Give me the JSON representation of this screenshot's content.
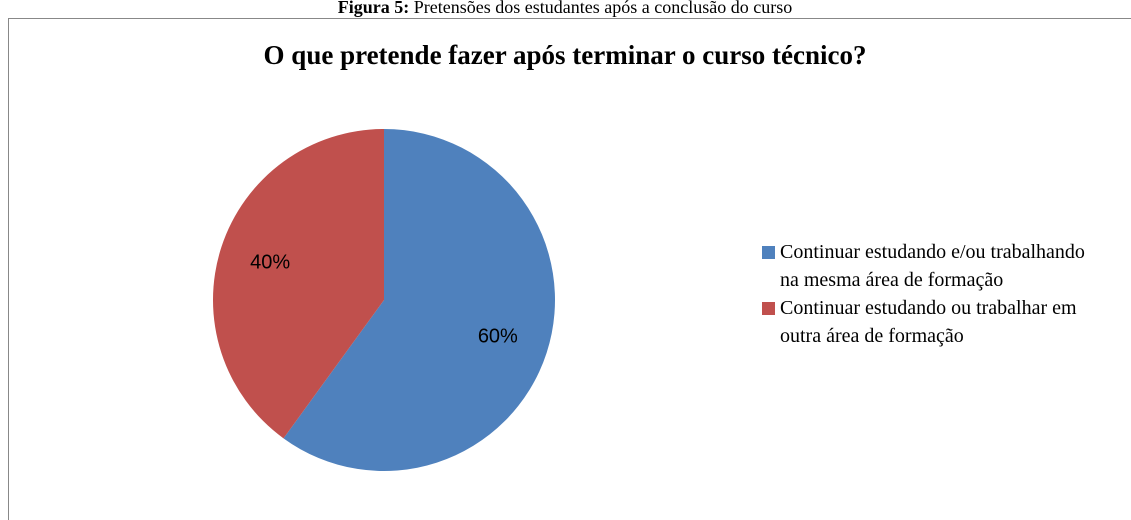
{
  "caption_label": "Figura 5:",
  "caption": "Pretensões dos estudantes após a conclusão do curso",
  "chart_data": {
    "type": "pie",
    "title": "O que pretende fazer após terminar o curso técnico?",
    "categories": [
      "Continuar estudando e/ou trabalhando na mesma área de formação",
      "Continuar estudando ou trabalhar em outra área de formação"
    ],
    "values": [
      60,
      40
    ],
    "value_labels": [
      "60%",
      "40%"
    ],
    "colors": [
      "#4f81bd",
      "#c0504d"
    ],
    "legend": "right"
  }
}
